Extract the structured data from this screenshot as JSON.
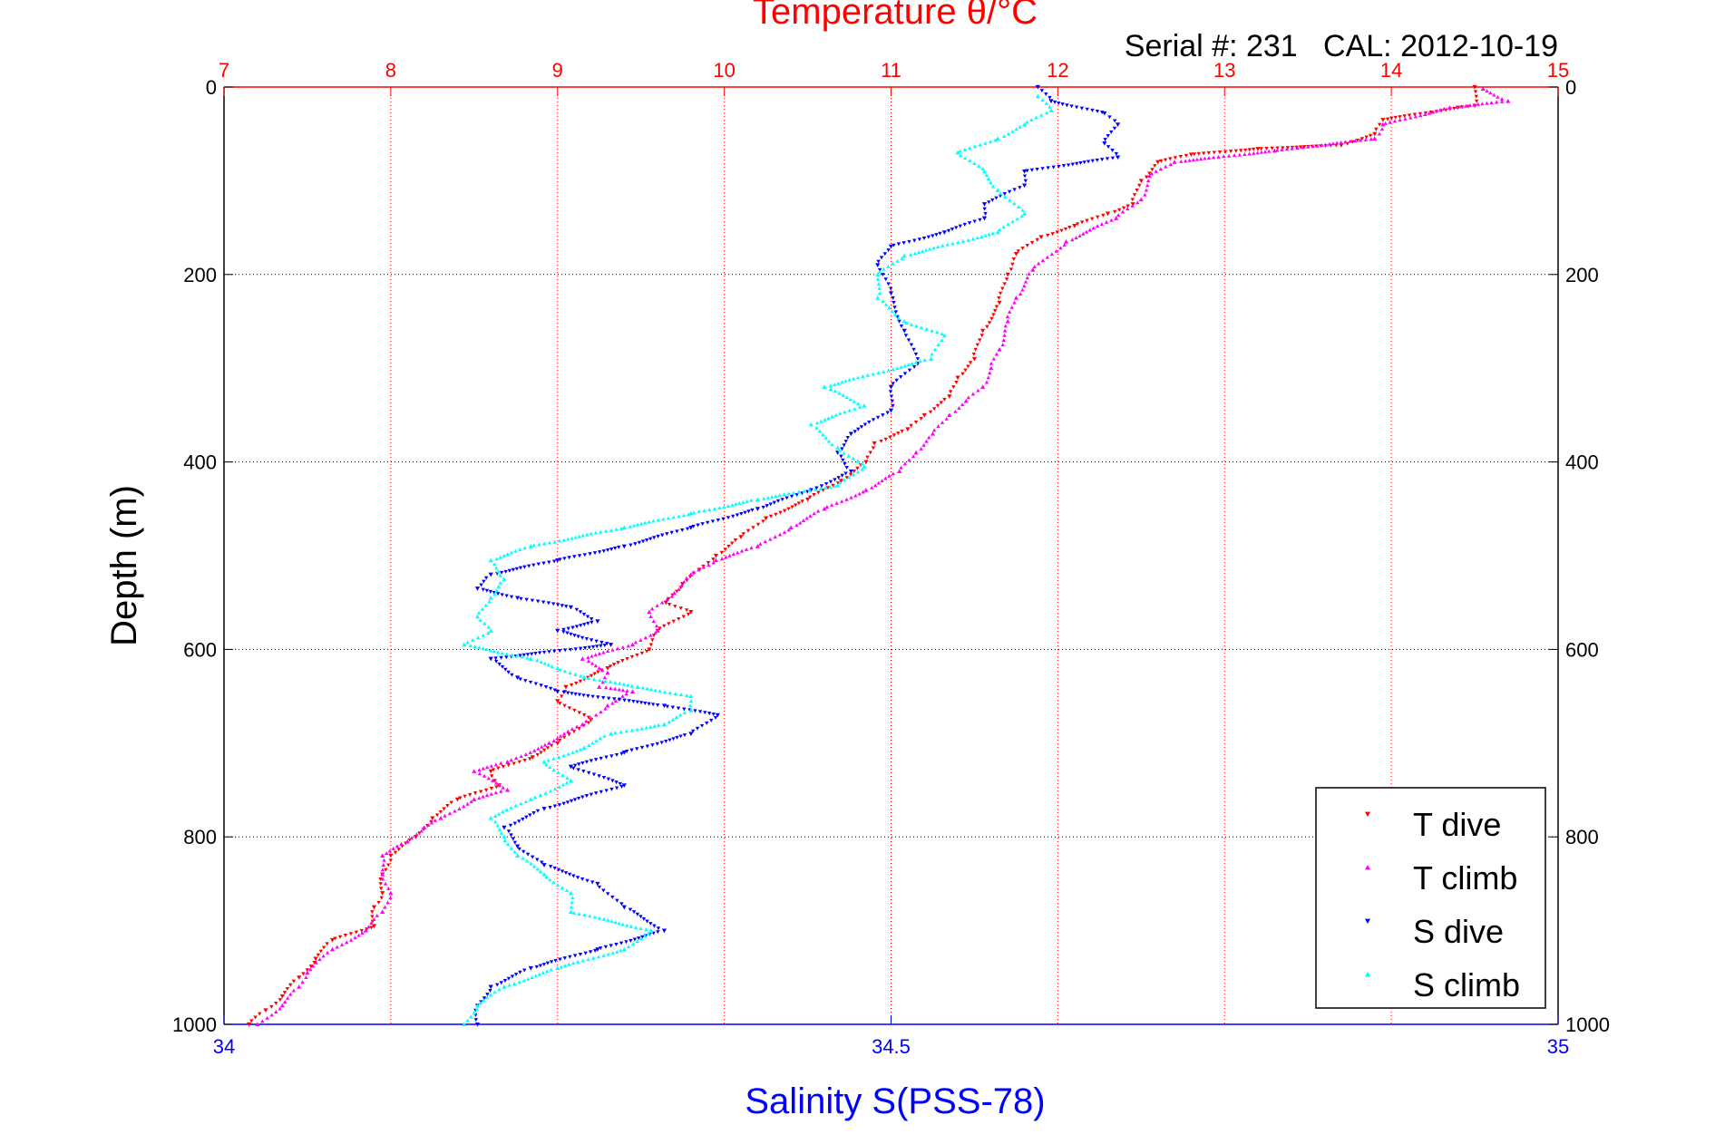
{
  "chart_data": {
    "type": "scatter",
    "title": "Temperature θ/°C",
    "subtitle": "Serial #: 231   CAL: 2012-10-19",
    "xlabel": "Salinity S(PSS-78)",
    "ylabel": "Depth (m)",
    "x_top": {
      "label": "Temperature θ/°C",
      "lim": [
        7,
        15
      ],
      "ticks": [
        "7",
        "8",
        "9",
        "10",
        "11",
        "12",
        "13",
        "14",
        "15"
      ],
      "color": "#ff0000",
      "grid": true
    },
    "x_bottom": {
      "label": "Salinity S(PSS-78)",
      "lim": [
        34,
        35
      ],
      "ticks": [
        "34",
        "34.5",
        "35"
      ],
      "color": "#0000ff"
    },
    "y": {
      "lim": [
        0,
        1000
      ],
      "reversed": true,
      "ticks": [
        "0",
        "200",
        "400",
        "600",
        "800",
        "1000"
      ],
      "grid": true
    },
    "legend": {
      "placement": "bottom-right"
    },
    "series": [
      {
        "name": "T dive",
        "axis": "top",
        "color": "#ff0000",
        "marker": "triangle-down",
        "points": [
          [
            14.5,
            0
          ],
          [
            14.5,
            20
          ],
          [
            14.4,
            22
          ],
          [
            13.95,
            35
          ],
          [
            13.9,
            50
          ],
          [
            13.7,
            62
          ],
          [
            13.2,
            66
          ],
          [
            12.8,
            72
          ],
          [
            12.6,
            80
          ],
          [
            12.5,
            100
          ],
          [
            12.45,
            125
          ],
          [
            12.3,
            135
          ],
          [
            12.1,
            148
          ],
          [
            11.9,
            160
          ],
          [
            11.75,
            178
          ],
          [
            11.7,
            200
          ],
          [
            11.65,
            230
          ],
          [
            11.55,
            260
          ],
          [
            11.5,
            290
          ],
          [
            11.4,
            310
          ],
          [
            11.35,
            330
          ],
          [
            11.2,
            350
          ],
          [
            11.1,
            365
          ],
          [
            10.9,
            380
          ],
          [
            10.85,
            400
          ],
          [
            10.7,
            420
          ],
          [
            10.5,
            440
          ],
          [
            10.25,
            460
          ],
          [
            10.1,
            480
          ],
          [
            9.95,
            500
          ],
          [
            9.85,
            515
          ],
          [
            9.75,
            530
          ],
          [
            9.65,
            550
          ],
          [
            9.8,
            560
          ],
          [
            9.6,
            580
          ],
          [
            9.55,
            600
          ],
          [
            9.3,
            620
          ],
          [
            9.05,
            640
          ],
          [
            9.0,
            655
          ],
          [
            9.2,
            675
          ],
          [
            9.0,
            700
          ],
          [
            8.85,
            715
          ],
          [
            8.6,
            730
          ],
          [
            8.65,
            745
          ],
          [
            8.4,
            760
          ],
          [
            8.25,
            780
          ],
          [
            8.15,
            800
          ],
          [
            8.0,
            820
          ],
          [
            7.95,
            840
          ],
          [
            7.95,
            860
          ],
          [
            7.9,
            875
          ],
          [
            7.9,
            895
          ],
          [
            7.65,
            910
          ],
          [
            7.55,
            930
          ],
          [
            7.45,
            950
          ],
          [
            7.35,
            970
          ],
          [
            7.25,
            985
          ],
          [
            7.15,
            1000
          ]
        ]
      },
      {
        "name": "T climb",
        "axis": "top",
        "color": "#ff00ff",
        "marker": "triangle-up",
        "points": [
          [
            7.2,
            1000
          ],
          [
            7.35,
            980
          ],
          [
            7.45,
            960
          ],
          [
            7.5,
            945
          ],
          [
            7.65,
            920
          ],
          [
            7.85,
            900
          ],
          [
            7.95,
            880
          ],
          [
            8.0,
            860
          ],
          [
            7.95,
            840
          ],
          [
            7.95,
            820
          ],
          [
            8.1,
            805
          ],
          [
            8.2,
            790
          ],
          [
            8.3,
            780
          ],
          [
            8.5,
            760
          ],
          [
            8.7,
            750
          ],
          [
            8.5,
            730
          ],
          [
            8.7,
            720
          ],
          [
            8.95,
            700
          ],
          [
            9.15,
            680
          ],
          [
            9.3,
            660
          ],
          [
            9.45,
            645
          ],
          [
            9.25,
            640
          ],
          [
            9.3,
            625
          ],
          [
            9.15,
            610
          ],
          [
            9.45,
            595
          ],
          [
            9.6,
            580
          ],
          [
            9.55,
            560
          ],
          [
            9.7,
            540
          ],
          [
            9.8,
            520
          ],
          [
            9.95,
            505
          ],
          [
            10.2,
            490
          ],
          [
            10.4,
            470
          ],
          [
            10.6,
            450
          ],
          [
            10.85,
            430
          ],
          [
            11.05,
            410
          ],
          [
            11.15,
            390
          ],
          [
            11.25,
            370
          ],
          [
            11.35,
            350
          ],
          [
            11.45,
            335
          ],
          [
            11.55,
            320
          ],
          [
            11.6,
            300
          ],
          [
            11.65,
            280
          ],
          [
            11.7,
            250
          ],
          [
            11.75,
            225
          ],
          [
            11.85,
            195
          ],
          [
            12.05,
            165
          ],
          [
            12.35,
            140
          ],
          [
            12.5,
            120
          ],
          [
            12.55,
            95
          ],
          [
            12.7,
            80
          ],
          [
            13.3,
            68
          ],
          [
            13.9,
            55
          ],
          [
            13.95,
            40
          ],
          [
            14.35,
            22
          ],
          [
            14.7,
            15
          ],
          [
            14.55,
            2
          ]
        ]
      },
      {
        "name": "S dive",
        "axis": "bottom",
        "color": "#0000ff",
        "marker": "triangle-down",
        "points": [
          [
            34.61,
            0
          ],
          [
            34.62,
            15
          ],
          [
            34.66,
            28
          ],
          [
            34.67,
            40
          ],
          [
            34.66,
            60
          ],
          [
            34.67,
            75
          ],
          [
            34.6,
            90
          ],
          [
            34.6,
            105
          ],
          [
            34.57,
            125
          ],
          [
            34.57,
            140
          ],
          [
            34.54,
            155
          ],
          [
            34.5,
            170
          ],
          [
            34.49,
            190
          ],
          [
            34.5,
            220
          ],
          [
            34.51,
            260
          ],
          [
            34.52,
            295
          ],
          [
            34.5,
            320
          ],
          [
            34.5,
            345
          ],
          [
            34.47,
            370
          ],
          [
            34.46,
            390
          ],
          [
            34.47,
            410
          ],
          [
            34.44,
            430
          ],
          [
            34.4,
            450
          ],
          [
            34.35,
            470
          ],
          [
            34.3,
            490
          ],
          [
            34.25,
            505
          ],
          [
            34.2,
            520
          ],
          [
            34.19,
            535
          ],
          [
            34.22,
            545
          ],
          [
            34.26,
            555
          ],
          [
            34.28,
            570
          ],
          [
            34.25,
            580
          ],
          [
            34.29,
            595
          ],
          [
            34.2,
            610
          ],
          [
            34.22,
            630
          ],
          [
            34.25,
            645
          ],
          [
            34.33,
            660
          ],
          [
            34.37,
            670
          ],
          [
            34.35,
            690
          ],
          [
            34.3,
            710
          ],
          [
            34.26,
            725
          ],
          [
            34.3,
            745
          ],
          [
            34.24,
            770
          ],
          [
            34.21,
            790
          ],
          [
            34.22,
            810
          ],
          [
            34.24,
            830
          ],
          [
            34.28,
            850
          ],
          [
            34.3,
            875
          ],
          [
            34.33,
            900
          ],
          [
            34.28,
            920
          ],
          [
            34.23,
            940
          ],
          [
            34.2,
            960
          ],
          [
            34.19,
            980
          ],
          [
            34.19,
            1000
          ]
        ]
      },
      {
        "name": "S climb",
        "axis": "bottom",
        "color": "#00ffff",
        "marker": "triangle-up",
        "points": [
          [
            34.18,
            1000
          ],
          [
            34.19,
            980
          ],
          [
            34.21,
            960
          ],
          [
            34.25,
            940
          ],
          [
            34.3,
            920
          ],
          [
            34.32,
            900
          ],
          [
            34.26,
            880
          ],
          [
            34.26,
            860
          ],
          [
            34.24,
            840
          ],
          [
            34.22,
            820
          ],
          [
            34.21,
            800
          ],
          [
            34.2,
            780
          ],
          [
            34.23,
            760
          ],
          [
            34.26,
            740
          ],
          [
            34.24,
            720
          ],
          [
            34.27,
            705
          ],
          [
            34.29,
            690
          ],
          [
            34.33,
            680
          ],
          [
            34.35,
            665
          ],
          [
            34.35,
            650
          ],
          [
            34.31,
            640
          ],
          [
            34.27,
            630
          ],
          [
            34.25,
            620
          ],
          [
            34.23,
            610
          ],
          [
            34.18,
            595
          ],
          [
            34.2,
            580
          ],
          [
            34.19,
            565
          ],
          [
            34.2,
            545
          ],
          [
            34.21,
            525
          ],
          [
            34.2,
            505
          ],
          [
            34.23,
            490
          ],
          [
            34.3,
            470
          ],
          [
            34.35,
            455
          ],
          [
            34.4,
            440
          ],
          [
            34.46,
            425
          ],
          [
            34.48,
            405
          ],
          [
            34.46,
            385
          ],
          [
            34.44,
            360
          ],
          [
            34.48,
            340
          ],
          [
            34.45,
            320
          ],
          [
            34.53,
            290
          ],
          [
            34.54,
            265
          ],
          [
            34.51,
            250
          ],
          [
            34.49,
            225
          ],
          [
            34.49,
            200
          ],
          [
            34.51,
            180
          ],
          [
            34.58,
            155
          ],
          [
            34.6,
            135
          ],
          [
            34.58,
            110
          ],
          [
            34.57,
            90
          ],
          [
            34.55,
            70
          ],
          [
            34.58,
            55
          ],
          [
            34.6,
            40
          ],
          [
            34.62,
            25
          ],
          [
            34.61,
            10
          ]
        ]
      }
    ]
  }
}
